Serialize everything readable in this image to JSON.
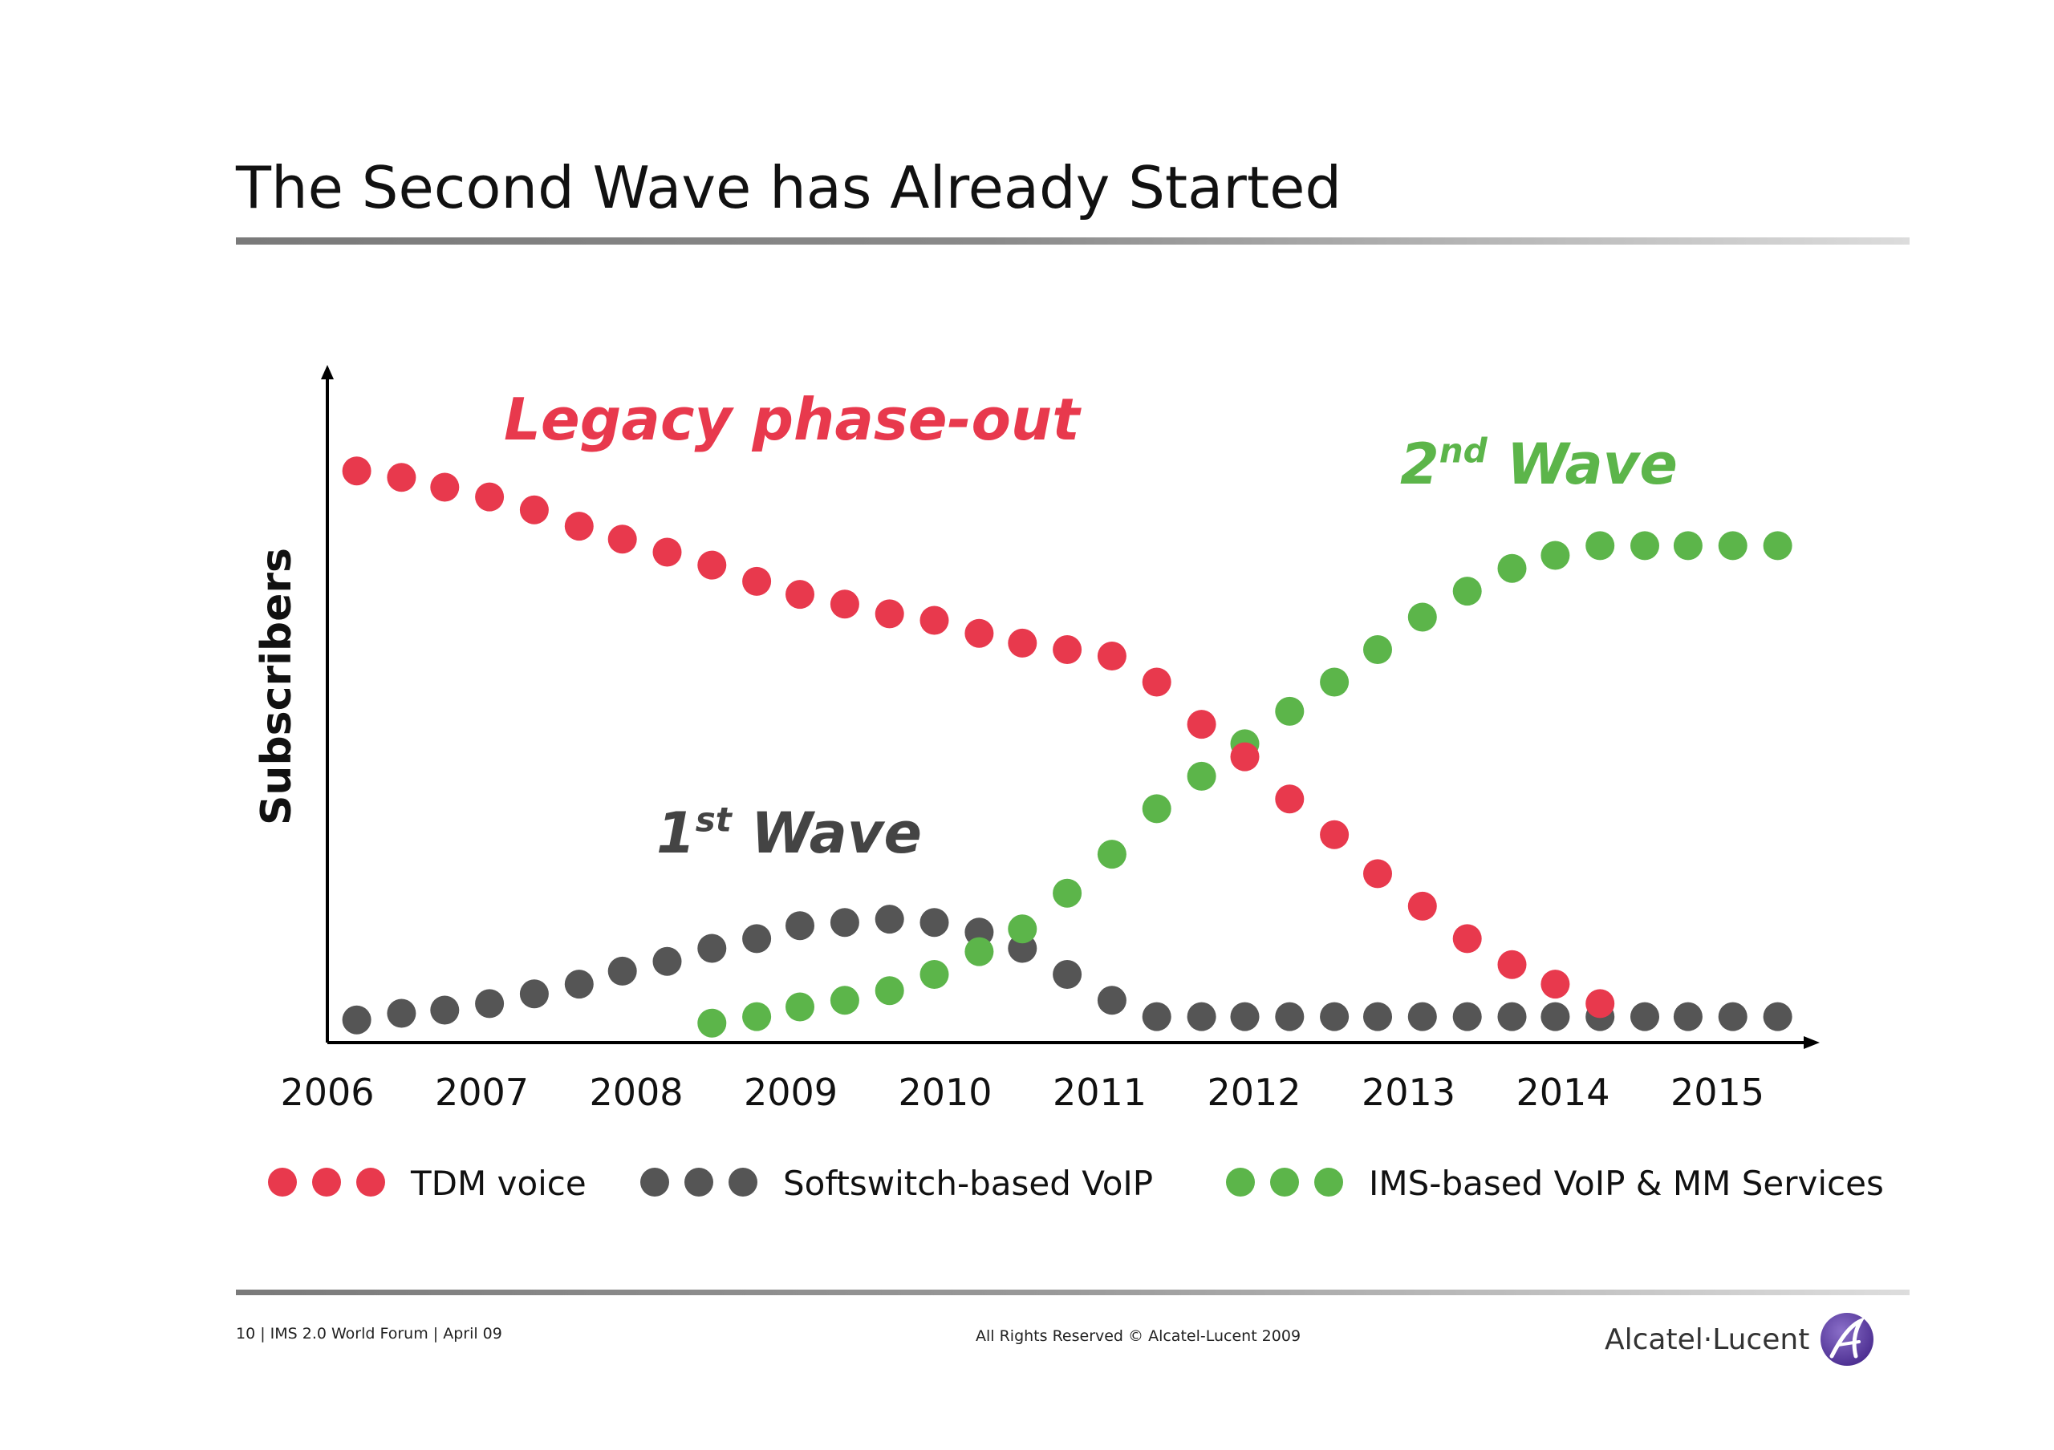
{
  "slide": {
    "title": "The Second Wave has Already Started"
  },
  "footer": {
    "left": "10 | IMS 2.0 World Forum | April 09",
    "center": "All Rights Reserved © Alcatel-Lucent 2009",
    "logo_text": "Alcatel·Lucent"
  },
  "colors": {
    "tdm": "#e8394d",
    "softswitch": "#555555",
    "ims": "#5cb54a",
    "axis": "#000000"
  },
  "chart_data": {
    "type": "scatter",
    "title": "",
    "ylabel": "Subscribers",
    "xlabel": "",
    "x_ticks": [
      "2006",
      "2007",
      "2008",
      "2009",
      "2010",
      "2011",
      "2012",
      "2013",
      "2014",
      "2015"
    ],
    "xlim": [
      2006,
      2015.9
    ],
    "ylim": [
      0,
      100
    ],
    "grid": false,
    "legend_position": "bottom",
    "annotations": [
      {
        "series": "TDM voice",
        "label": "Legacy phase-out"
      },
      {
        "series": "Softswitch-based VoIP",
        "label": "1",
        "sup": "st",
        "rest": " Wave"
      },
      {
        "series": "IMS-based VoIP & MM Services",
        "label": "2",
        "sup": "nd",
        "rest": " Wave"
      }
    ],
    "series": [
      {
        "name": "TDM voice",
        "color_key": "tdm",
        "points": [
          [
            2006.19,
            88
          ],
          [
            2006.48,
            87
          ],
          [
            2006.76,
            85.5
          ],
          [
            2007.05,
            84
          ],
          [
            2007.34,
            82
          ],
          [
            2007.63,
            79.5
          ],
          [
            2007.91,
            77.5
          ],
          [
            2008.2,
            75.5
          ],
          [
            2008.49,
            73.5
          ],
          [
            2008.78,
            71
          ],
          [
            2009.06,
            69
          ],
          [
            2009.35,
            67.5
          ],
          [
            2009.64,
            66
          ],
          [
            2009.93,
            65
          ],
          [
            2010.22,
            63
          ],
          [
            2010.5,
            61.5
          ],
          [
            2010.79,
            60.5
          ],
          [
            2011.08,
            59.5
          ],
          [
            2011.37,
            55.5
          ],
          [
            2011.66,
            49
          ],
          [
            2011.94,
            44
          ],
          [
            2012.23,
            37.5
          ],
          [
            2012.52,
            32
          ],
          [
            2012.8,
            26
          ],
          [
            2013.09,
            21
          ],
          [
            2013.38,
            16
          ],
          [
            2013.67,
            12
          ],
          [
            2013.95,
            9
          ],
          [
            2014.24,
            6
          ]
        ]
      },
      {
        "name": "Softswitch-based VoIP",
        "color_key": "softswitch",
        "points": [
          [
            2006.19,
            3.5
          ],
          [
            2006.48,
            4.5
          ],
          [
            2006.76,
            5
          ],
          [
            2007.05,
            6
          ],
          [
            2007.34,
            7.5
          ],
          [
            2007.63,
            9
          ],
          [
            2007.91,
            11
          ],
          [
            2008.2,
            12.5
          ],
          [
            2008.49,
            14.5
          ],
          [
            2008.78,
            16
          ],
          [
            2009.06,
            18
          ],
          [
            2009.35,
            18.5
          ],
          [
            2009.64,
            19
          ],
          [
            2009.93,
            18.5
          ],
          [
            2010.22,
            17
          ],
          [
            2010.5,
            14.5
          ],
          [
            2010.79,
            10.5
          ],
          [
            2011.08,
            6.5
          ],
          [
            2011.37,
            4
          ],
          [
            2011.66,
            4
          ],
          [
            2011.94,
            4
          ],
          [
            2012.23,
            4
          ],
          [
            2012.52,
            4
          ],
          [
            2012.8,
            4
          ],
          [
            2013.09,
            4
          ],
          [
            2013.38,
            4
          ],
          [
            2013.67,
            4
          ],
          [
            2013.95,
            4
          ],
          [
            2014.24,
            4
          ],
          [
            2014.53,
            4
          ],
          [
            2014.81,
            4
          ],
          [
            2015.1,
            4
          ],
          [
            2015.39,
            4
          ]
        ]
      },
      {
        "name": "IMS-based VoIP & MM Services",
        "color_key": "ims",
        "points": [
          [
            2008.49,
            3
          ],
          [
            2008.78,
            4
          ],
          [
            2009.06,
            5.5
          ],
          [
            2009.35,
            6.5
          ],
          [
            2009.64,
            8
          ],
          [
            2009.93,
            10.5
          ],
          [
            2010.22,
            14
          ],
          [
            2010.5,
            17.5
          ],
          [
            2010.79,
            23
          ],
          [
            2011.08,
            29
          ],
          [
            2011.37,
            36
          ],
          [
            2011.66,
            41
          ],
          [
            2011.94,
            46
          ],
          [
            2012.23,
            51
          ],
          [
            2012.52,
            55.5
          ],
          [
            2012.8,
            60.5
          ],
          [
            2013.09,
            65.5
          ],
          [
            2013.38,
            69.5
          ],
          [
            2013.67,
            73
          ],
          [
            2013.95,
            75
          ],
          [
            2014.24,
            76.5
          ],
          [
            2014.53,
            76.5
          ],
          [
            2014.81,
            76.5
          ],
          [
            2015.1,
            76.5
          ],
          [
            2015.39,
            76.5
          ]
        ]
      }
    ]
  }
}
